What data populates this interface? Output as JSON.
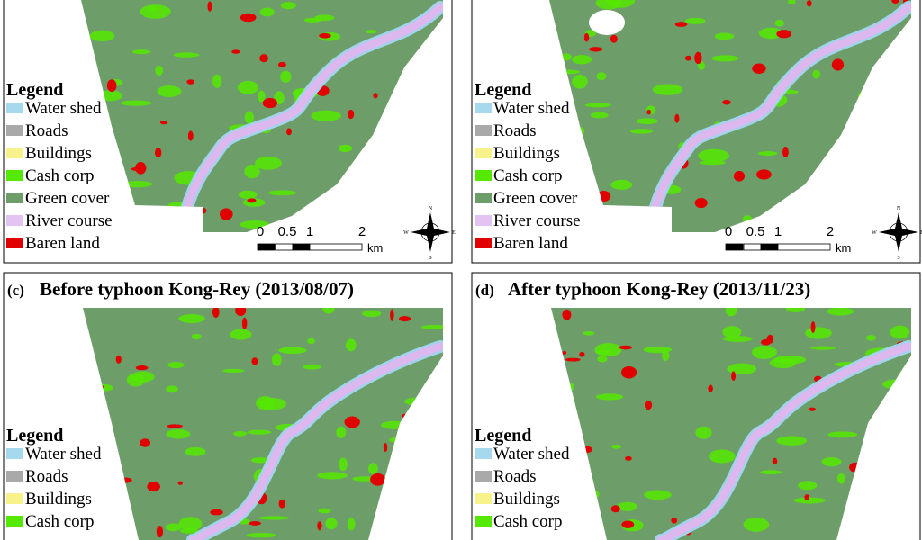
{
  "panels": [
    {
      "legend": {
        "title": "Legend",
        "items": [
          {
            "name": "Water shed",
            "color": "#a6d8ee"
          },
          {
            "name": "Roads",
            "color": "#a9a9a9"
          },
          {
            "name": "Buildings",
            "color": "#f7f38a"
          },
          {
            "name": "Cash corp",
            "color": "#55e800"
          },
          {
            "name": "Green cover",
            "color": "#6d9e6a"
          },
          {
            "name": "River course",
            "color": "#e3c3f2"
          },
          {
            "name": "Baren land",
            "color": "#e00000"
          }
        ]
      },
      "scale": {
        "labels": [
          "0",
          "0.5",
          "1",
          "2"
        ],
        "unit": "km"
      },
      "compass": [
        "N",
        "E",
        "S",
        "W"
      ]
    },
    {
      "legend": {
        "title": "Legend",
        "items": [
          {
            "name": "Water shed",
            "color": "#a6d8ee"
          },
          {
            "name": "Roads",
            "color": "#a9a9a9"
          },
          {
            "name": "Buildings",
            "color": "#f7f38a"
          },
          {
            "name": "Cash corp",
            "color": "#55e800"
          },
          {
            "name": "Green cover",
            "color": "#6d9e6a"
          },
          {
            "name": "River course",
            "color": "#e3c3f2"
          },
          {
            "name": "Baren land",
            "color": "#e00000"
          }
        ]
      },
      "scale": {
        "labels": [
          "0",
          "0.5",
          "1",
          "2"
        ],
        "unit": "km"
      },
      "compass": [
        "N",
        "E",
        "S",
        "W"
      ]
    },
    {
      "label": "(c)",
      "title": "Before typhoon Kong-Rey (2013/08/07)",
      "legend": {
        "title": "Legend",
        "items": [
          {
            "name": "Water shed",
            "color": "#a6d8ee"
          },
          {
            "name": "Roads",
            "color": "#a9a9a9"
          },
          {
            "name": "Buildings",
            "color": "#f7f38a"
          },
          {
            "name": "Cash corp",
            "color": "#55e800"
          }
        ]
      }
    },
    {
      "label": "(d)",
      "title": "After typhoon Kong-Rey (2013/11/23)",
      "legend": {
        "title": "Legend",
        "items": [
          {
            "name": "Water shed",
            "color": "#a6d8ee"
          },
          {
            "name": "Roads",
            "color": "#a9a9a9"
          },
          {
            "name": "Buildings",
            "color": "#f7f38a"
          },
          {
            "name": "Cash corp",
            "color": "#55e800"
          }
        ]
      }
    }
  ]
}
